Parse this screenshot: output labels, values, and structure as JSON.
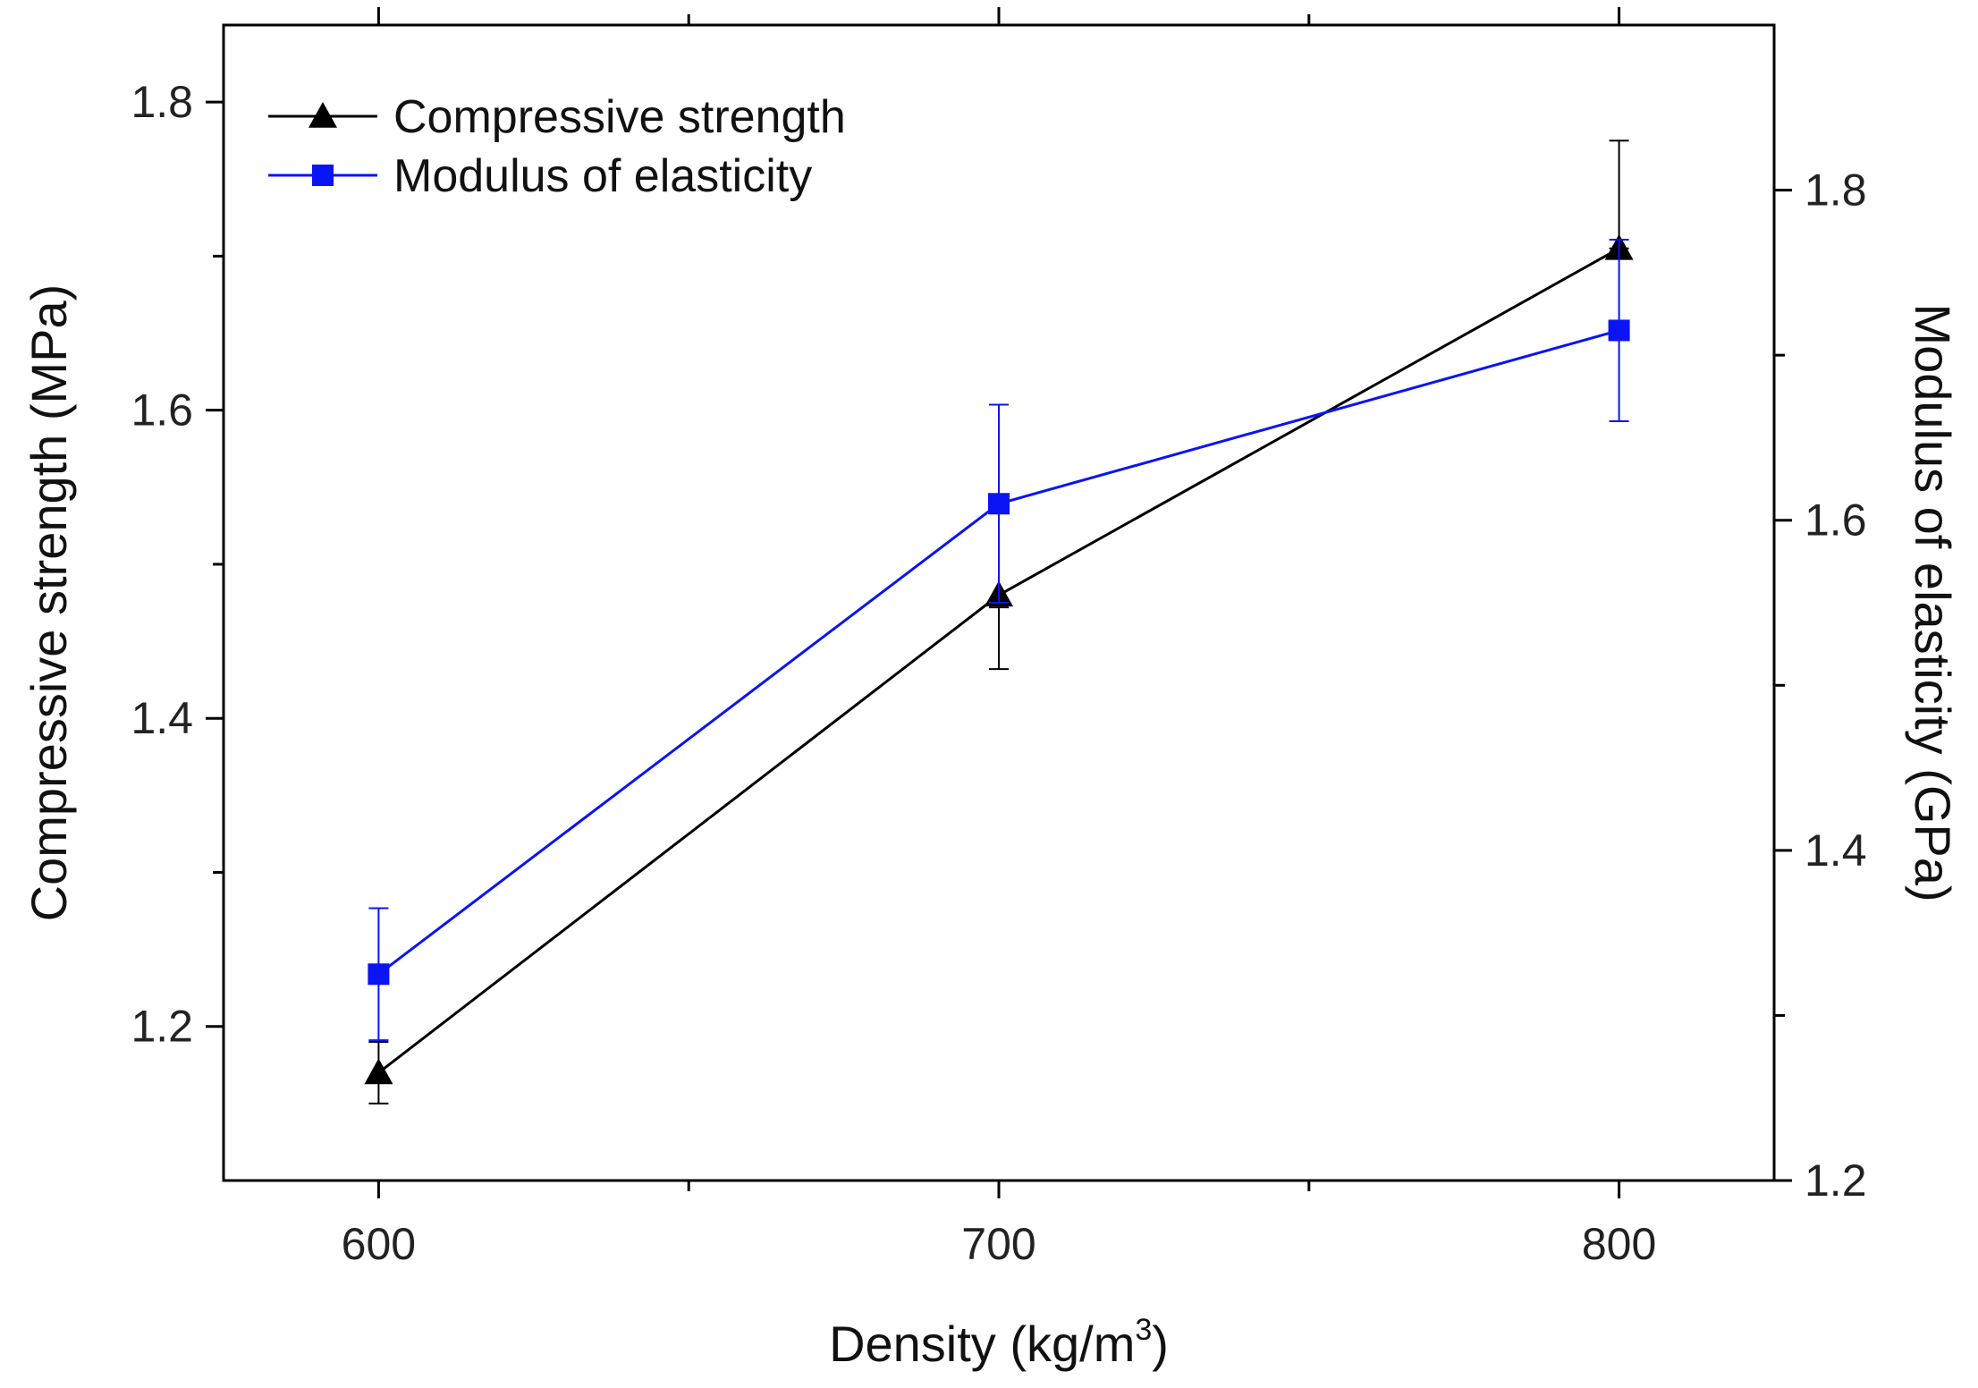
{
  "chart_data": {
    "type": "line",
    "x": [
      600,
      700,
      800
    ],
    "x_tick_labels": [
      "600",
      "700",
      "800"
    ],
    "xlim": [
      575,
      825
    ],
    "x_minor_ticks": [
      650,
      750
    ],
    "xlabel": {
      "prefix": "Density (kg/m",
      "superscript": "3",
      "suffix": ")"
    },
    "y_left": {
      "label": "Compressive strength (MPa)",
      "lim": [
        1.1,
        1.85
      ],
      "ticks": [
        1.2,
        1.4,
        1.6,
        1.8
      ],
      "tick_labels": [
        "1.2",
        "1.4",
        "1.6",
        "1.8"
      ],
      "minor_ticks": [
        1.3,
        1.5,
        1.7
      ]
    },
    "y_right": {
      "label": "Modulus of elasticity (GPa)",
      "lim": [
        1.2,
        1.9
      ],
      "ticks": [
        1.2,
        1.4,
        1.6,
        1.8
      ],
      "tick_labels": [
        "1.2",
        "1.4",
        "1.6",
        "1.8"
      ],
      "minor_ticks": [
        1.3,
        1.5,
        1.7
      ]
    },
    "series": [
      {
        "name": "Compressive strength",
        "axis": "left",
        "color": "#000000",
        "marker": "triangle",
        "values": [
          1.17,
          1.48,
          1.705
        ],
        "err_low": [
          1.15,
          1.432,
          1.705
        ],
        "err_high": [
          1.19,
          1.472,
          1.775
        ]
      },
      {
        "name": "Modulus of elasticity",
        "axis": "right",
        "color": "#0a14f5",
        "marker": "square",
        "values": [
          1.325,
          1.61,
          1.715
        ],
        "err_low": [
          1.285,
          1.55,
          1.66
        ],
        "err_high": [
          1.365,
          1.67,
          1.77
        ]
      }
    ],
    "legend": {
      "placement": "top-left",
      "entries": [
        "Compressive strength",
        "Modulus of elasticity"
      ]
    }
  }
}
